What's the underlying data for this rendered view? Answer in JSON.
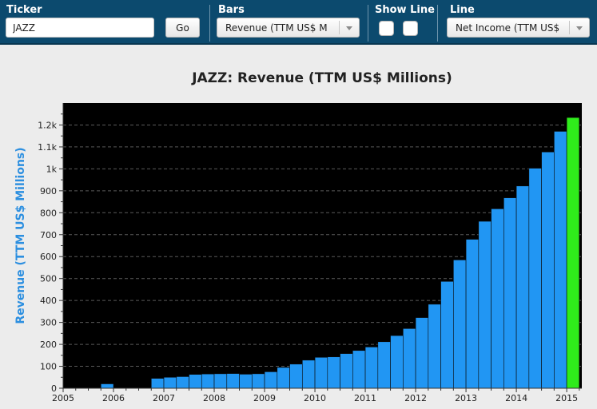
{
  "toolbar": {
    "ticker_label": "Ticker",
    "ticker_value": "JAZZ",
    "go_label": "Go",
    "bars_label": "Bars",
    "bars_selected": "Revenue (TTM US$ M",
    "show_line_label": "Show Line",
    "line_label": "Line",
    "line_selected": "Net Income (TTM US$"
  },
  "colors": {
    "toolbar_bg": "#0c4a6e",
    "bar": "#2196f3",
    "bar_highlight": "#2fec1b",
    "plot_bg": "#000000",
    "ylabel": "#2c8fe0"
  },
  "chart_data": {
    "type": "bar",
    "title": "JAZZ: Revenue (TTM US$ Millions)",
    "ylabel": "Revenue (TTM US$ Millions)",
    "xlabel": "",
    "ylim": [
      0,
      1300
    ],
    "xlim": [
      2005.0,
      2015.3
    ],
    "yticks": [
      0,
      100,
      200,
      300,
      400,
      500,
      600,
      700,
      800,
      900,
      1000,
      1100,
      1200
    ],
    "ytick_labels": [
      "0",
      "100",
      "200",
      "300",
      "400",
      "500",
      "600",
      "700",
      "800",
      "900",
      "1k",
      "1.1k",
      "1.2k"
    ],
    "xticks": [
      2005,
      2006,
      2007,
      2008,
      2009,
      2010,
      2011,
      2012,
      2013,
      2014,
      2015
    ],
    "xtick_labels": [
      "2005",
      "2006",
      "2007",
      "2008",
      "2009",
      "2010",
      "2011",
      "2012",
      "2013",
      "2014",
      "2015"
    ],
    "grid": true,
    "bar_width_years": 0.25,
    "x": [
      2005.875,
      2006.875,
      2007.125,
      2007.375,
      2007.625,
      2007.875,
      2008.125,
      2008.375,
      2008.625,
      2008.875,
      2009.125,
      2009.375,
      2009.625,
      2009.875,
      2010.125,
      2010.375,
      2010.625,
      2010.875,
      2011.125,
      2011.375,
      2011.625,
      2011.875,
      2012.125,
      2012.375,
      2012.625,
      2012.875,
      2013.125,
      2013.375,
      2013.625,
      2013.875,
      2014.125,
      2014.375,
      2014.625,
      2014.875,
      2015.125
    ],
    "values": [
      20,
      45,
      50,
      53,
      63,
      65,
      66,
      67,
      64,
      66,
      75,
      95,
      110,
      128,
      141,
      143,
      158,
      172,
      188,
      212,
      240,
      272,
      322,
      383,
      487,
      585,
      679,
      761,
      818,
      868,
      922,
      1003,
      1077,
      1171,
      1234
    ],
    "highlight_last": true
  }
}
